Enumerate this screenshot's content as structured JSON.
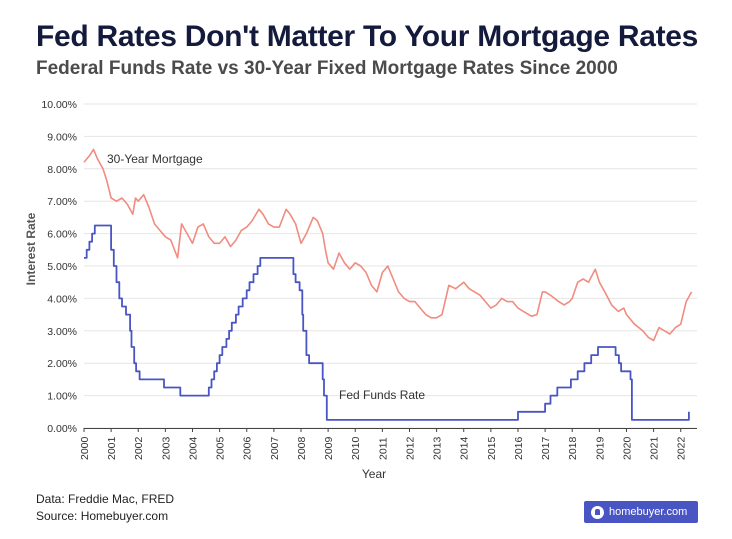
{
  "header": {
    "title": "Fed Rates Don't Matter To Your Mortgage Rates",
    "subtitle": "Federal Funds Rate vs 30-Year Fixed Mortgage Rates Since 2000"
  },
  "footer": {
    "line1": "Data: Freddie Mac, FRED",
    "line2": "Source: Homebuyer.com",
    "logo_text": "homebuyer.com"
  },
  "colors": {
    "mortgage": "#f08c80",
    "fed": "#4a55c4",
    "grid": "#e6e6e6",
    "title": "#141a3c"
  },
  "chart_data": {
    "type": "line",
    "title": "Fed Rates Don't Matter To Your Mortgage Rates",
    "subtitle": "Federal Funds Rate vs 30-Year Fixed Mortgage Rates Since 2000",
    "xlabel": "Year",
    "ylabel": "Interest Rate",
    "xlim": [
      2000,
      2022.6
    ],
    "ylim": [
      0,
      10
    ],
    "x_ticks": [
      "2000",
      "2001",
      "2002",
      "2003",
      "2004",
      "2005",
      "2006",
      "2007",
      "2008",
      "2009",
      "2010",
      "2011",
      "2012",
      "2013",
      "2014",
      "2015",
      "2016",
      "2017",
      "2018",
      "2019",
      "2020",
      "2021",
      "2022"
    ],
    "y_ticks": [
      "0.00%",
      "1.00%",
      "2.00%",
      "3.00%",
      "4.00%",
      "5.00%",
      "6.00%",
      "7.00%",
      "8.00%",
      "9.00%",
      "10.00%"
    ],
    "grid": "horizontal",
    "legend": "inline labels",
    "series": [
      {
        "name": "30-Year Mortgage",
        "step": false,
        "points": [
          [
            2000,
            8.2
          ],
          [
            2000.2,
            8.4
          ],
          [
            2000.35,
            8.6
          ],
          [
            2000.5,
            8.3
          ],
          [
            2000.7,
            8.0
          ],
          [
            2000.85,
            7.6
          ],
          [
            2001,
            7.1
          ],
          [
            2001.2,
            7.0
          ],
          [
            2001.4,
            7.1
          ],
          [
            2001.6,
            6.9
          ],
          [
            2001.8,
            6.6
          ],
          [
            2001.9,
            7.1
          ],
          [
            2002,
            7.0
          ],
          [
            2002.2,
            7.2
          ],
          [
            2002.4,
            6.8
          ],
          [
            2002.6,
            6.3
          ],
          [
            2002.8,
            6.1
          ],
          [
            2003,
            5.9
          ],
          [
            2003.2,
            5.8
          ],
          [
            2003.45,
            5.25
          ],
          [
            2003.6,
            6.3
          ],
          [
            2003.8,
            6.0
          ],
          [
            2004,
            5.7
          ],
          [
            2004.2,
            6.2
          ],
          [
            2004.4,
            6.3
          ],
          [
            2004.6,
            5.9
          ],
          [
            2004.8,
            5.7
          ],
          [
            2005,
            5.7
          ],
          [
            2005.2,
            5.9
          ],
          [
            2005.4,
            5.6
          ],
          [
            2005.6,
            5.8
          ],
          [
            2005.8,
            6.1
          ],
          [
            2006,
            6.2
          ],
          [
            2006.2,
            6.4
          ],
          [
            2006.45,
            6.75
          ],
          [
            2006.6,
            6.6
          ],
          [
            2006.8,
            6.3
          ],
          [
            2007,
            6.2
          ],
          [
            2007.2,
            6.2
          ],
          [
            2007.45,
            6.75
          ],
          [
            2007.6,
            6.6
          ],
          [
            2007.8,
            6.3
          ],
          [
            2008,
            5.7
          ],
          [
            2008.2,
            6.0
          ],
          [
            2008.45,
            6.5
          ],
          [
            2008.6,
            6.4
          ],
          [
            2008.8,
            6.0
          ],
          [
            2008.9,
            5.5
          ],
          [
            2009,
            5.1
          ],
          [
            2009.2,
            4.9
          ],
          [
            2009.4,
            5.4
          ],
          [
            2009.6,
            5.1
          ],
          [
            2009.8,
            4.9
          ],
          [
            2010,
            5.1
          ],
          [
            2010.2,
            5.0
          ],
          [
            2010.4,
            4.8
          ],
          [
            2010.6,
            4.4
          ],
          [
            2010.8,
            4.2
          ],
          [
            2011,
            4.8
          ],
          [
            2011.2,
            5.0
          ],
          [
            2011.4,
            4.6
          ],
          [
            2011.6,
            4.2
          ],
          [
            2011.8,
            4.0
          ],
          [
            2012,
            3.9
          ],
          [
            2012.2,
            3.9
          ],
          [
            2012.4,
            3.7
          ],
          [
            2012.6,
            3.5
          ],
          [
            2012.8,
            3.4
          ],
          [
            2013,
            3.4
          ],
          [
            2013.2,
            3.5
          ],
          [
            2013.45,
            4.4
          ],
          [
            2013.7,
            4.3
          ],
          [
            2014,
            4.5
          ],
          [
            2014.2,
            4.3
          ],
          [
            2014.4,
            4.2
          ],
          [
            2014.6,
            4.1
          ],
          [
            2014.8,
            3.9
          ],
          [
            2015,
            3.7
          ],
          [
            2015.2,
            3.8
          ],
          [
            2015.4,
            4.0
          ],
          [
            2015.6,
            3.9
          ],
          [
            2015.8,
            3.9
          ],
          [
            2016,
            3.7
          ],
          [
            2016.2,
            3.6
          ],
          [
            2016.5,
            3.45
          ],
          [
            2016.7,
            3.5
          ],
          [
            2016.9,
            4.2
          ],
          [
            2017,
            4.2
          ],
          [
            2017.2,
            4.1
          ],
          [
            2017.5,
            3.9
          ],
          [
            2017.7,
            3.8
          ],
          [
            2017.9,
            3.9
          ],
          [
            2018,
            4.0
          ],
          [
            2018.2,
            4.5
          ],
          [
            2018.4,
            4.6
          ],
          [
            2018.6,
            4.5
          ],
          [
            2018.85,
            4.9
          ],
          [
            2019,
            4.5
          ],
          [
            2019.2,
            4.2
          ],
          [
            2019.45,
            3.8
          ],
          [
            2019.7,
            3.6
          ],
          [
            2019.9,
            3.7
          ],
          [
            2020,
            3.5
          ],
          [
            2020.3,
            3.2
          ],
          [
            2020.6,
            3.0
          ],
          [
            2020.8,
            2.8
          ],
          [
            2021,
            2.7
          ],
          [
            2021.2,
            3.1
          ],
          [
            2021.4,
            3.0
          ],
          [
            2021.6,
            2.9
          ],
          [
            2021.8,
            3.1
          ],
          [
            2022,
            3.2
          ],
          [
            2022.2,
            3.9
          ],
          [
            2022.4,
            4.2
          ]
        ]
      },
      {
        "name": "Fed Funds Rate",
        "step": true,
        "points": [
          [
            2000,
            5.25
          ],
          [
            2000.1,
            5.5
          ],
          [
            2000.2,
            5.75
          ],
          [
            2000.3,
            6.0
          ],
          [
            2000.4,
            6.25
          ],
          [
            2000.9,
            6.25
          ],
          [
            2001,
            5.5
          ],
          [
            2001.1,
            5.0
          ],
          [
            2001.2,
            4.5
          ],
          [
            2001.3,
            4.0
          ],
          [
            2001.4,
            3.75
          ],
          [
            2001.55,
            3.5
          ],
          [
            2001.7,
            3.0
          ],
          [
            2001.75,
            2.5
          ],
          [
            2001.85,
            2.0
          ],
          [
            2001.92,
            1.75
          ],
          [
            2002,
            1.75
          ],
          [
            2002.05,
            1.5
          ],
          [
            2002.9,
            1.5
          ],
          [
            2002.95,
            1.25
          ],
          [
            2003.55,
            1.0
          ],
          [
            2004.5,
            1.0
          ],
          [
            2004.6,
            1.25
          ],
          [
            2004.7,
            1.5
          ],
          [
            2004.8,
            1.75
          ],
          [
            2004.9,
            2.0
          ],
          [
            2005,
            2.25
          ],
          [
            2005.1,
            2.5
          ],
          [
            2005.25,
            2.75
          ],
          [
            2005.35,
            3.0
          ],
          [
            2005.45,
            3.25
          ],
          [
            2005.6,
            3.5
          ],
          [
            2005.7,
            3.75
          ],
          [
            2005.85,
            4.0
          ],
          [
            2006,
            4.25
          ],
          [
            2006.1,
            4.5
          ],
          [
            2006.25,
            4.75
          ],
          [
            2006.4,
            5.0
          ],
          [
            2006.5,
            5.25
          ],
          [
            2007.7,
            5.25
          ],
          [
            2007.72,
            4.75
          ],
          [
            2007.8,
            4.5
          ],
          [
            2007.95,
            4.25
          ],
          [
            2008.05,
            3.5
          ],
          [
            2008.08,
            3.0
          ],
          [
            2008.2,
            2.25
          ],
          [
            2008.3,
            2.0
          ],
          [
            2008.8,
            1.5
          ],
          [
            2008.85,
            1.0
          ],
          [
            2008.95,
            0.25
          ],
          [
            2015.95,
            0.25
          ],
          [
            2016.0,
            0.5
          ],
          [
            2016.95,
            0.5
          ],
          [
            2017.0,
            0.75
          ],
          [
            2017.2,
            1.0
          ],
          [
            2017.45,
            1.25
          ],
          [
            2017.95,
            1.5
          ],
          [
            2018.2,
            1.75
          ],
          [
            2018.45,
            2.0
          ],
          [
            2018.7,
            2.25
          ],
          [
            2018.95,
            2.5
          ],
          [
            2019.55,
            2.5
          ],
          [
            2019.6,
            2.25
          ],
          [
            2019.72,
            2.0
          ],
          [
            2019.8,
            1.75
          ],
          [
            2020.15,
            1.5
          ],
          [
            2020.2,
            0.25
          ],
          [
            2022.2,
            0.25
          ],
          [
            2022.3,
            0.5
          ]
        ]
      }
    ]
  }
}
